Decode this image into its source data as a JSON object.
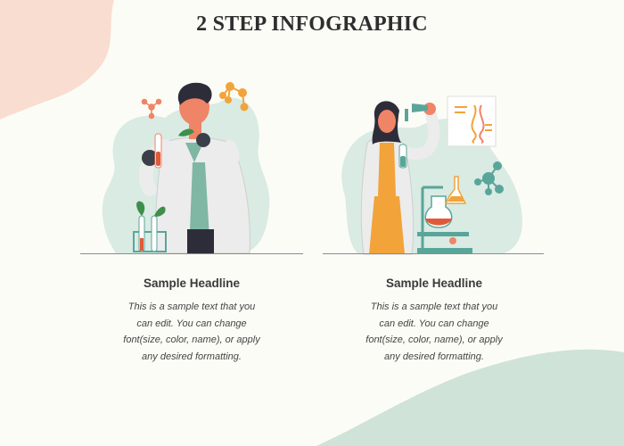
{
  "title": "2 STEP INFOGRAPHIC",
  "colors": {
    "background": "#fcfcf6",
    "blob_top_left": "#f9ddd0",
    "blob_bottom_right": "#cfe3d8",
    "illustration_backdrop": "#d9ebe3",
    "skin": "#f08466",
    "accent_orange": "#f2a33a",
    "lab_coat": "#ececec",
    "hair": "#2d2d3a",
    "molecule_teal": "#5aa59a"
  },
  "steps": [
    {
      "headline": "Sample Headline",
      "lines": [
        "This is a sample text that you",
        "can edit. You can change",
        "font(size, color, name), or apply",
        "any desired formatting."
      ],
      "illustration": "scientist-with-test-tube-icon"
    },
    {
      "headline": "Sample Headline",
      "lines": [
        "This is a sample text that you",
        "can edit. You can change",
        "font(size, color, name), or apply",
        "any desired formatting."
      ],
      "illustration": "scientist-with-pipette-icon"
    }
  ]
}
